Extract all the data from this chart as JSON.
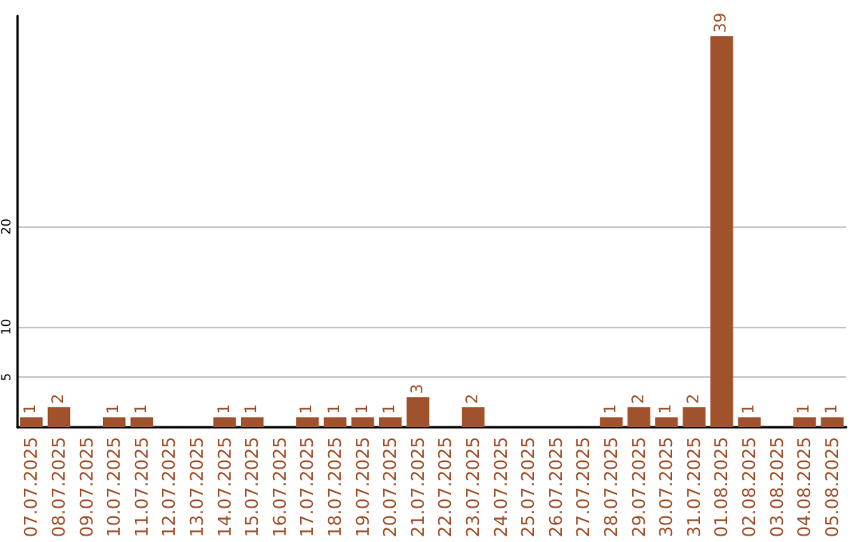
{
  "chart_data": {
    "type": "bar",
    "categories": [
      "07.07.2025",
      "08.07.2025",
      "09.07.2025",
      "10.07.2025",
      "11.07.2025",
      "12.07.2025",
      "13.07.2025",
      "14.07.2025",
      "15.07.2025",
      "16.07.2025",
      "17.07.2025",
      "18.07.2025",
      "19.07.2025",
      "20.07.2025",
      "21.07.2025",
      "22.07.2025",
      "23.07.2025",
      "24.07.2025",
      "25.07.2025",
      "26.07.2025",
      "27.07.2025",
      "28.07.2025",
      "29.07.2025",
      "30.07.2025",
      "31.07.2025",
      "01.08.2025",
      "02.08.2025",
      "03.08.2025",
      "04.08.2025",
      "05.08.2025"
    ],
    "values": [
      1,
      2,
      0,
      1,
      1,
      0,
      0,
      1,
      1,
      0,
      1,
      1,
      1,
      1,
      3,
      0,
      2,
      0,
      0,
      0,
      0,
      1,
      2,
      1,
      2,
      39,
      1,
      0,
      1,
      1
    ],
    "value_labels": [
      "1",
      "2",
      null,
      "1",
      "1",
      null,
      null,
      "1",
      "1",
      null,
      "1",
      "1",
      "1",
      "1",
      "3",
      null,
      "2",
      null,
      null,
      null,
      null,
      "1",
      "2",
      "1",
      "2",
      "39",
      "1",
      null,
      "1",
      "1"
    ],
    "color": "#a0522d",
    "ylim": [
      0,
      41
    ],
    "yticks": [
      5,
      10,
      20
    ],
    "grid": "y"
  }
}
